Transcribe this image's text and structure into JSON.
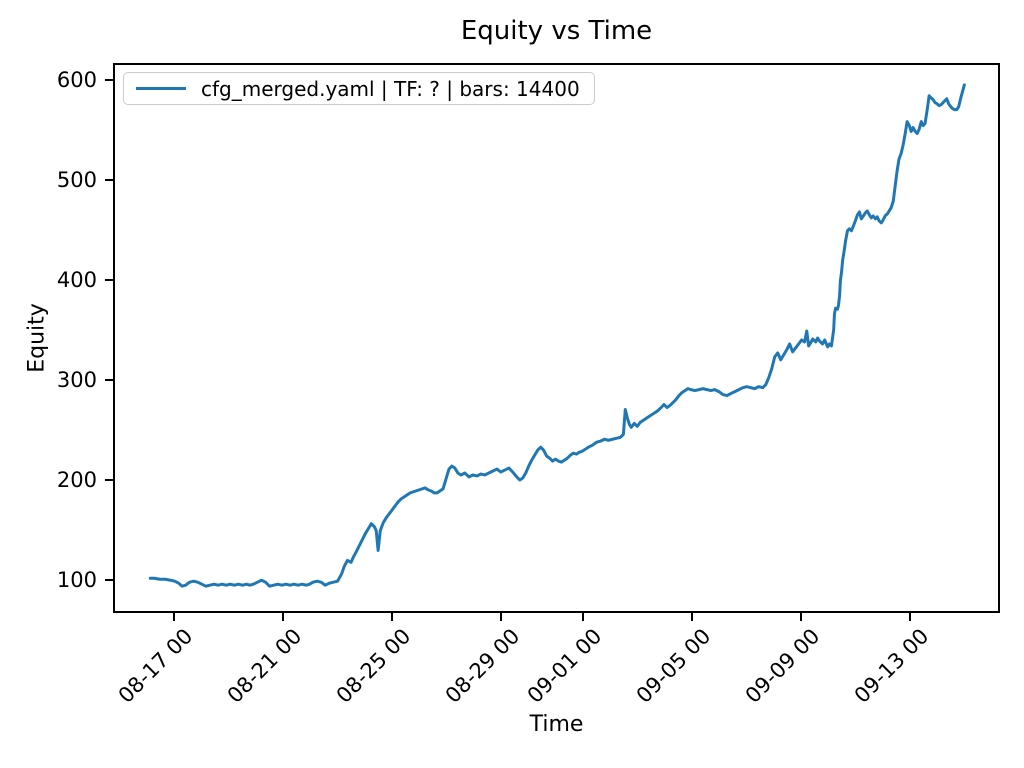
{
  "chart_data": {
    "type": "line",
    "title": "Equity vs Time",
    "xlabel": "Time",
    "ylabel": "Equity",
    "legend_position": "upper left",
    "grid": false,
    "x_unit": "days since 08-16 00:00",
    "x_domain": [
      -1.25,
      31.3
    ],
    "y_domain": [
      67,
      617
    ],
    "x_ticks": [
      {
        "day": 1,
        "label": "08-17 00"
      },
      {
        "day": 5,
        "label": "08-21 00"
      },
      {
        "day": 9,
        "label": "08-25 00"
      },
      {
        "day": 13,
        "label": "08-29 00"
      },
      {
        "day": 16,
        "label": "09-01 00"
      },
      {
        "day": 20,
        "label": "09-05 00"
      },
      {
        "day": 24,
        "label": "09-09 00"
      },
      {
        "day": 28,
        "label": "09-13 00"
      }
    ],
    "y_ticks": [
      100,
      200,
      300,
      400,
      500,
      600
    ],
    "series": [
      {
        "name": "cfg_merged.yaml | TF: ? | bars: 14400",
        "color": "#1f77b4",
        "points": [
          [
            0.05,
            100
          ],
          [
            0.2,
            100
          ],
          [
            0.4,
            99
          ],
          [
            0.6,
            99
          ],
          [
            0.8,
            98
          ],
          [
            0.95,
            97
          ],
          [
            1.1,
            95
          ],
          [
            1.22,
            92
          ],
          [
            1.35,
            93
          ],
          [
            1.5,
            96
          ],
          [
            1.65,
            97
          ],
          [
            1.8,
            96
          ],
          [
            1.95,
            94
          ],
          [
            2.1,
            92
          ],
          [
            2.25,
            93
          ],
          [
            2.4,
            94
          ],
          [
            2.55,
            93
          ],
          [
            2.7,
            94
          ],
          [
            2.85,
            93
          ],
          [
            3.0,
            94
          ],
          [
            3.15,
            93
          ],
          [
            3.3,
            94
          ],
          [
            3.45,
            93
          ],
          [
            3.6,
            94
          ],
          [
            3.72,
            93
          ],
          [
            3.85,
            94
          ],
          [
            4.0,
            96
          ],
          [
            4.15,
            98
          ],
          [
            4.3,
            96
          ],
          [
            4.45,
            92
          ],
          [
            4.6,
            93
          ],
          [
            4.75,
            94
          ],
          [
            4.9,
            93
          ],
          [
            5.05,
            94
          ],
          [
            5.2,
            93
          ],
          [
            5.35,
            94
          ],
          [
            5.5,
            93
          ],
          [
            5.65,
            94
          ],
          [
            5.8,
            93
          ],
          [
            5.92,
            94
          ],
          [
            6.05,
            96
          ],
          [
            6.2,
            97
          ],
          [
            6.35,
            96
          ],
          [
            6.5,
            93
          ],
          [
            6.65,
            95
          ],
          [
            6.8,
            96
          ],
          [
            6.95,
            97
          ],
          [
            7.1,
            104
          ],
          [
            7.2,
            112
          ],
          [
            7.32,
            118
          ],
          [
            7.45,
            116
          ],
          [
            7.55,
            122
          ],
          [
            7.65,
            127
          ],
          [
            7.76,
            133
          ],
          [
            7.87,
            139
          ],
          [
            7.98,
            145
          ],
          [
            8.09,
            150
          ],
          [
            8.2,
            155
          ],
          [
            8.31,
            152
          ],
          [
            8.38,
            148
          ],
          [
            8.45,
            128
          ],
          [
            8.53,
            148
          ],
          [
            8.64,
            156
          ],
          [
            8.75,
            161
          ],
          [
            8.86,
            165
          ],
          [
            8.97,
            169
          ],
          [
            9.08,
            173
          ],
          [
            9.19,
            177
          ],
          [
            9.3,
            180
          ],
          [
            9.41,
            182
          ],
          [
            9.52,
            184
          ],
          [
            9.63,
            186
          ],
          [
            9.74,
            187
          ],
          [
            9.85,
            188
          ],
          [
            9.96,
            189
          ],
          [
            10.07,
            190
          ],
          [
            10.18,
            191
          ],
          [
            10.29,
            189
          ],
          [
            10.4,
            188
          ],
          [
            10.51,
            186
          ],
          [
            10.62,
            186
          ],
          [
            10.73,
            188
          ],
          [
            10.84,
            190
          ],
          [
            10.95,
            200
          ],
          [
            11.06,
            210
          ],
          [
            11.17,
            213
          ],
          [
            11.28,
            211
          ],
          [
            11.39,
            206
          ],
          [
            11.5,
            204
          ],
          [
            11.65,
            206
          ],
          [
            11.8,
            202
          ],
          [
            11.94,
            204
          ],
          [
            12.09,
            203
          ],
          [
            12.24,
            205
          ],
          [
            12.38,
            204
          ],
          [
            12.53,
            206
          ],
          [
            12.68,
            208
          ],
          [
            12.83,
            210
          ],
          [
            12.97,
            207
          ],
          [
            13.12,
            209
          ],
          [
            13.27,
            211
          ],
          [
            13.41,
            207
          ],
          [
            13.56,
            202
          ],
          [
            13.67,
            199
          ],
          [
            13.78,
            201
          ],
          [
            13.89,
            206
          ],
          [
            14.0,
            213
          ],
          [
            14.11,
            219
          ],
          [
            14.22,
            224
          ],
          [
            14.33,
            229
          ],
          [
            14.44,
            232
          ],
          [
            14.55,
            229
          ],
          [
            14.66,
            223
          ],
          [
            14.77,
            221
          ],
          [
            14.88,
            218
          ],
          [
            14.99,
            220
          ],
          [
            15.1,
            218
          ],
          [
            15.21,
            217
          ],
          [
            15.32,
            219
          ],
          [
            15.43,
            221
          ],
          [
            15.54,
            224
          ],
          [
            15.65,
            226
          ],
          [
            15.76,
            225
          ],
          [
            15.87,
            227
          ],
          [
            15.98,
            228
          ],
          [
            16.09,
            230
          ],
          [
            16.2,
            232
          ],
          [
            16.35,
            234
          ],
          [
            16.5,
            237
          ],
          [
            16.64,
            238
          ],
          [
            16.79,
            240
          ],
          [
            16.94,
            239
          ],
          [
            17.09,
            240
          ],
          [
            17.23,
            241
          ],
          [
            17.38,
            242
          ],
          [
            17.49,
            245
          ],
          [
            17.56,
            270
          ],
          [
            17.64,
            261
          ],
          [
            17.71,
            255
          ],
          [
            17.78,
            252
          ],
          [
            17.89,
            256
          ],
          [
            18.0,
            253
          ],
          [
            18.11,
            257
          ],
          [
            18.22,
            259
          ],
          [
            18.33,
            261
          ],
          [
            18.44,
            263
          ],
          [
            18.55,
            265
          ],
          [
            18.66,
            267
          ],
          [
            18.77,
            269
          ],
          [
            18.88,
            272
          ],
          [
            18.99,
            275
          ],
          [
            19.1,
            272
          ],
          [
            19.21,
            274
          ],
          [
            19.32,
            277
          ],
          [
            19.43,
            280
          ],
          [
            19.54,
            284
          ],
          [
            19.65,
            287
          ],
          [
            19.76,
            289
          ],
          [
            19.87,
            291
          ],
          [
            19.98,
            290
          ],
          [
            20.13,
            289
          ],
          [
            20.28,
            290
          ],
          [
            20.42,
            291
          ],
          [
            20.57,
            290
          ],
          [
            20.72,
            289
          ],
          [
            20.86,
            290
          ],
          [
            21.01,
            288
          ],
          [
            21.16,
            285
          ],
          [
            21.31,
            284
          ],
          [
            21.45,
            286
          ],
          [
            21.6,
            288
          ],
          [
            21.75,
            290
          ],
          [
            21.89,
            292
          ],
          [
            22.04,
            293
          ],
          [
            22.19,
            292
          ],
          [
            22.33,
            291
          ],
          [
            22.48,
            293
          ],
          [
            22.63,
            292
          ],
          [
            22.74,
            295
          ],
          [
            22.85,
            302
          ],
          [
            22.96,
            311
          ],
          [
            23.07,
            323
          ],
          [
            23.18,
            327
          ],
          [
            23.29,
            320
          ],
          [
            23.4,
            325
          ],
          [
            23.51,
            330
          ],
          [
            23.62,
            336
          ],
          [
            23.73,
            328
          ],
          [
            23.84,
            332
          ],
          [
            23.95,
            336
          ],
          [
            24.06,
            340
          ],
          [
            24.17,
            338
          ],
          [
            24.25,
            349
          ],
          [
            24.32,
            334
          ],
          [
            24.39,
            337
          ],
          [
            24.47,
            341
          ],
          [
            24.58,
            338
          ],
          [
            24.65,
            342
          ],
          [
            24.72,
            339
          ],
          [
            24.83,
            336
          ],
          [
            24.91,
            340
          ],
          [
            25.02,
            333
          ],
          [
            25.09,
            336
          ],
          [
            25.16,
            334
          ],
          [
            25.24,
            350
          ],
          [
            25.27,
            366
          ],
          [
            25.31,
            372
          ],
          [
            25.38,
            371
          ],
          [
            25.42,
            375
          ],
          [
            25.46,
            385
          ],
          [
            25.49,
            400
          ],
          [
            25.53,
            408
          ],
          [
            25.57,
            420
          ],
          [
            25.64,
            432
          ],
          [
            25.68,
            440
          ],
          [
            25.75,
            450
          ],
          [
            25.82,
            452
          ],
          [
            25.9,
            450
          ],
          [
            25.97,
            455
          ],
          [
            26.04,
            460
          ],
          [
            26.12,
            466
          ],
          [
            26.19,
            469
          ],
          [
            26.26,
            462
          ],
          [
            26.34,
            465
          ],
          [
            26.41,
            468
          ],
          [
            26.48,
            470
          ],
          [
            26.56,
            466
          ],
          [
            26.63,
            463
          ],
          [
            26.7,
            465
          ],
          [
            26.78,
            462
          ],
          [
            26.85,
            464
          ],
          [
            26.92,
            460
          ],
          [
            27.0,
            458
          ],
          [
            27.07,
            461
          ],
          [
            27.14,
            465
          ],
          [
            27.22,
            467
          ],
          [
            27.29,
            470
          ],
          [
            27.36,
            473
          ],
          [
            27.44,
            480
          ],
          [
            27.51,
            495
          ],
          [
            27.58,
            510
          ],
          [
            27.65,
            522
          ],
          [
            27.73,
            528
          ],
          [
            27.8,
            536
          ],
          [
            27.88,
            548
          ],
          [
            27.95,
            560
          ],
          [
            28.03,
            556
          ],
          [
            28.1,
            550
          ],
          [
            28.17,
            554
          ],
          [
            28.25,
            550
          ],
          [
            28.32,
            548
          ],
          [
            28.39,
            552
          ],
          [
            28.47,
            560
          ],
          [
            28.54,
            556
          ],
          [
            28.61,
            558
          ],
          [
            28.69,
            572
          ],
          [
            28.76,
            586
          ],
          [
            28.83,
            584
          ],
          [
            28.91,
            582
          ],
          [
            28.98,
            579
          ],
          [
            29.05,
            578
          ],
          [
            29.13,
            576
          ],
          [
            29.2,
            577
          ],
          [
            29.27,
            579
          ],
          [
            29.34,
            581
          ],
          [
            29.41,
            583
          ],
          [
            29.48,
            578
          ],
          [
            29.56,
            575
          ],
          [
            29.63,
            573
          ],
          [
            29.7,
            572
          ],
          [
            29.78,
            572
          ],
          [
            29.85,
            575
          ],
          [
            29.92,
            583
          ],
          [
            29.99,
            590
          ],
          [
            30.06,
            597
          ]
        ]
      }
    ]
  }
}
